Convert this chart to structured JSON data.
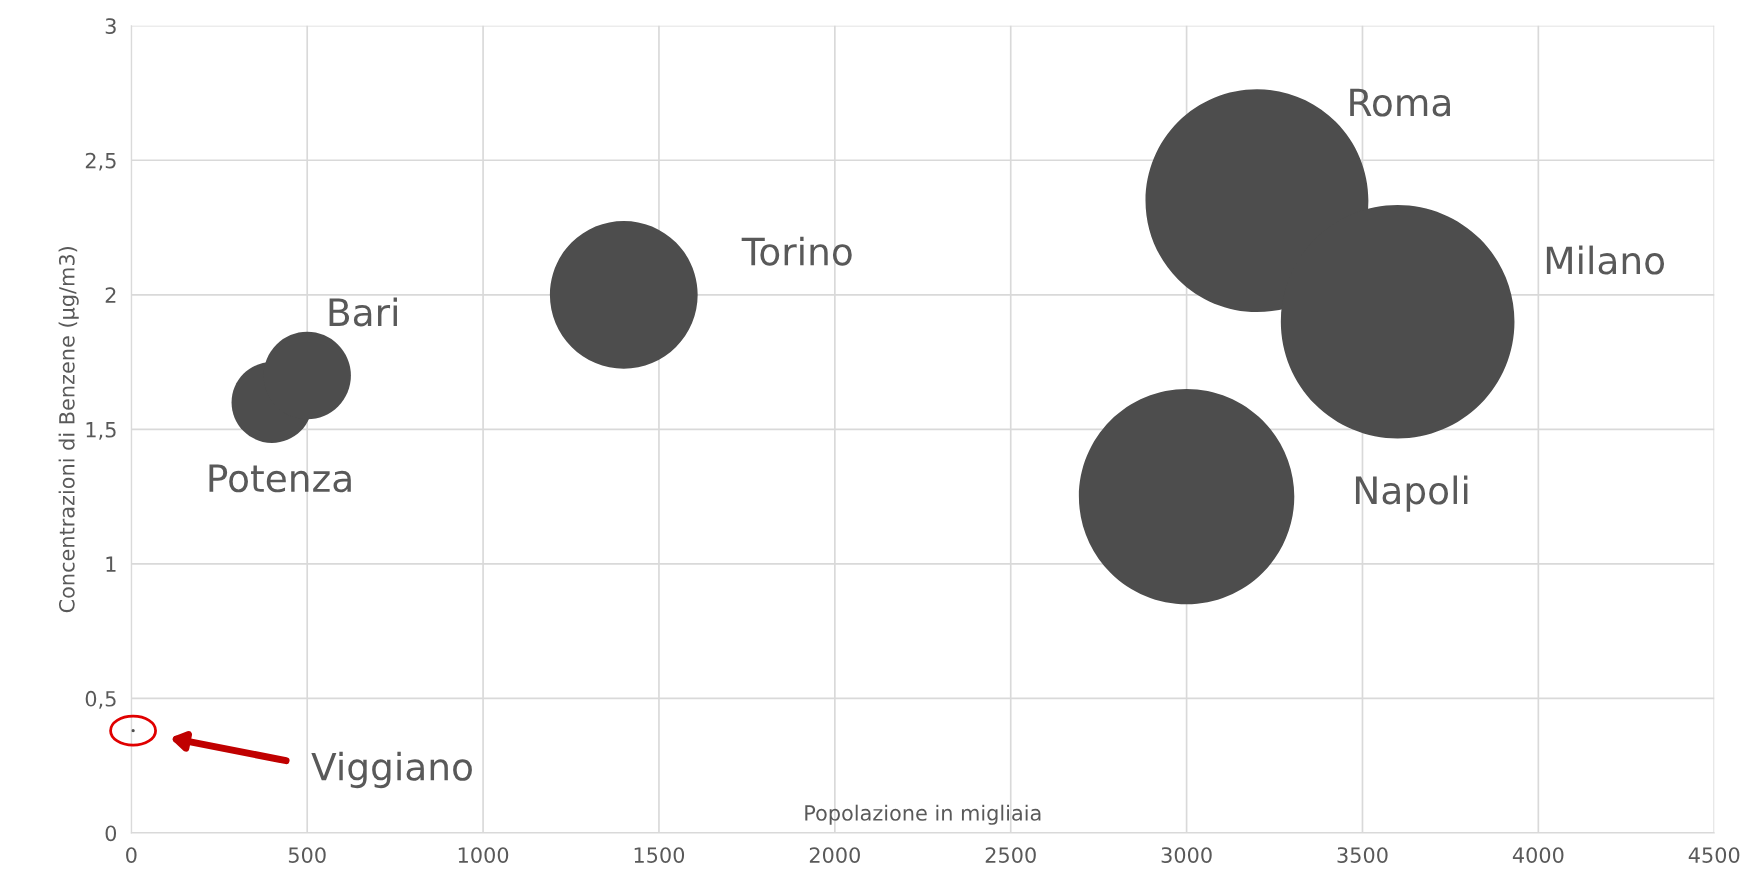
{
  "chart_data": {
    "type": "bubble",
    "xlabel": "Popolazione in migliaia",
    "ylabel": "Concentrazioni di Benzene (µg/m3)",
    "x": [
      5,
      400,
      500,
      1400,
      3200,
      3600,
      3000
    ],
    "values": [
      0.38,
      1.6,
      1.7,
      2.0,
      2.35,
      1.9,
      1.25
    ],
    "sizes": [
      0.0002,
      0.12,
      0.14,
      0.4,
      0.91,
      1,
      0.85
    ],
    "color": "#4d4d4d",
    "xlim": [
      0,
      4500
    ],
    "xticks": [
      0,
      500,
      1000,
      1500,
      2000,
      2500,
      3000,
      3500,
      4000,
      4500
    ],
    "ylim": [
      0,
      3
    ],
    "yticks": [
      0,
      {
        "value": 0.5,
        "label": "0,5"
      },
      1,
      {
        "value": 1.5,
        "label": "1,5"
      },
      2,
      {
        "value": 2.5,
        "label": "2,5"
      },
      3
    ],
    "grid": true,
    "value_labels": [
      null,
      "Potenza",
      "Bari",
      "Torino",
      "Roma",
      "Milano",
      "Napoli"
    ],
    "annotations": [
      "Viggiano"
    ]
  }
}
